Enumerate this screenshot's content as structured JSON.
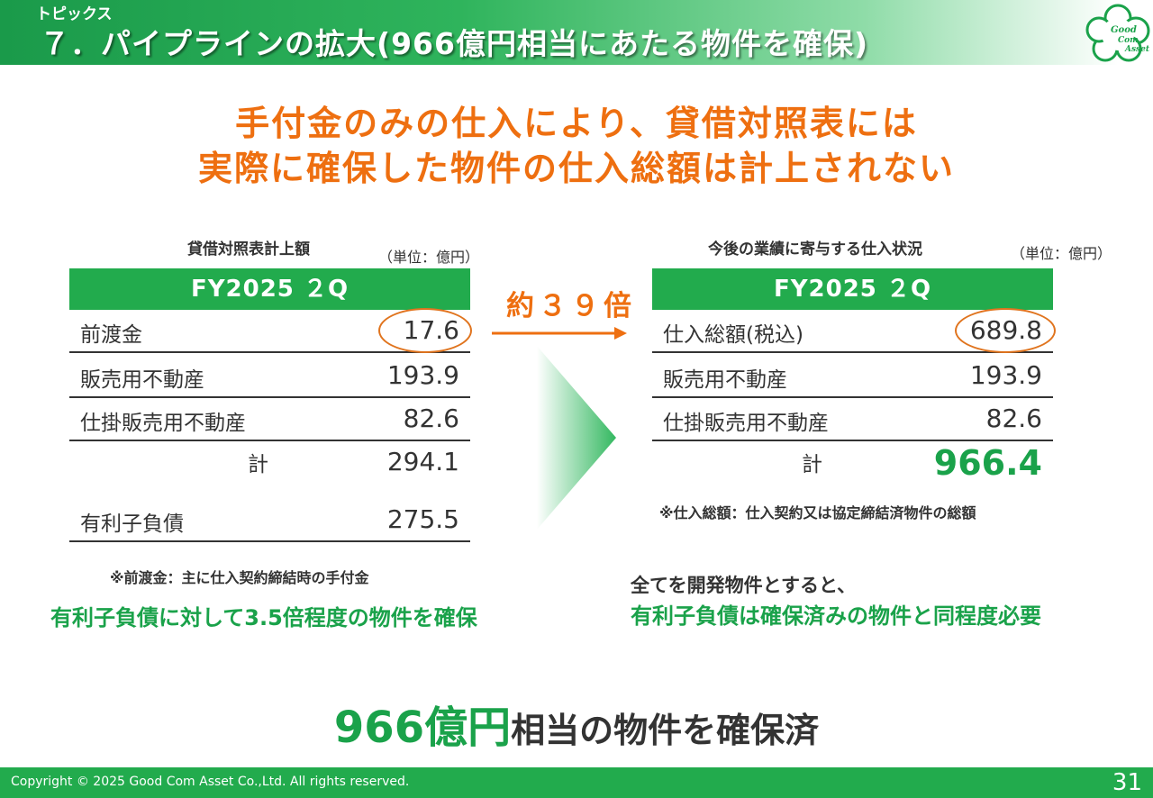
{
  "header": {
    "section_label": "トピックス",
    "title": "７．パイプラインの拡大(966億円相当にあたる物件を確保)",
    "logo_text": [
      "Good",
      "Com",
      "Asset"
    ]
  },
  "headline": {
    "line1": "手付金のみの仕入により、貸借対照表には",
    "line2": "実際に確保した物件の仕入総額は計上されない"
  },
  "left_table": {
    "caption": "貸借対照表計上額",
    "unit": "（単位：億円）",
    "header": "FY2025 ２Q",
    "rows": [
      {
        "label": "前渡金",
        "value": "17.6"
      },
      {
        "label": "販売用不動産",
        "value": "193.9"
      },
      {
        "label": "仕掛販売用不動産",
        "value": "82.6"
      },
      {
        "label": "計",
        "value": "294.1"
      },
      {
        "label": "有利子負債",
        "value": "275.5"
      }
    ],
    "note": "※前渡金：主に仕入契約締結時の手付金",
    "message": "有利子負債に対して3.5倍程度の物件を確保"
  },
  "ratio_label": "約３９倍",
  "right_table": {
    "caption": "今後の業績に寄与する仕入状況",
    "unit": "（単位：億円）",
    "header": "FY2025 ２Q",
    "rows": [
      {
        "label": "仕入総額(税込)",
        "value": "689.8"
      },
      {
        "label": "販売用不動産",
        "value": "193.9"
      },
      {
        "label": "仕掛販売用不動産",
        "value": "82.6"
      },
      {
        "label": "計",
        "value": "966.4"
      }
    ],
    "note": "※仕入総額：仕入契約又は協定締結済物件の総額",
    "message_line1": "全てを開発物件とすると、",
    "message_line2": "有利子負債は確保済みの物件と同程度必要"
  },
  "summary": {
    "highlight": "966億円",
    "rest": "相当の物件を確保済"
  },
  "footer": {
    "copyright": "Copyright © 2025 Good Com Asset Co.,Ltd. All rights reserved.",
    "page_number": "31"
  },
  "colors": {
    "brand_green": "#22ab4d",
    "accent_orange": "#ee6f10",
    "text": "#333333"
  }
}
